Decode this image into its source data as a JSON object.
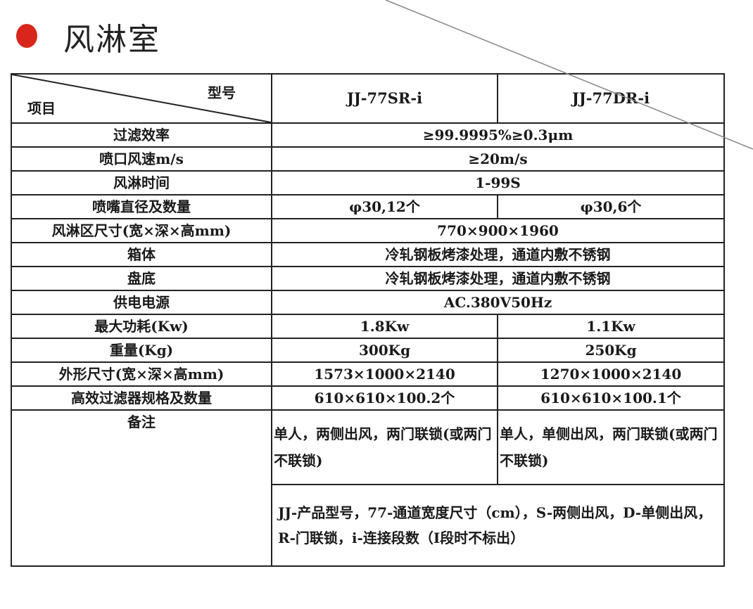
{
  "title": "风淋室",
  "colors": {
    "bullet": "#d9261c"
  },
  "header": {
    "item_label": "项目",
    "model_label": "型号",
    "models": [
      "JJ-77SR-i",
      "JJ-77DR-i"
    ]
  },
  "rows": [
    {
      "label": "过滤效率",
      "value": "≥99.9995%≥0.3μm"
    },
    {
      "label": "喷口风速m/s",
      "value": "≥20m/s"
    },
    {
      "label": "风淋时间",
      "value": "1-99S"
    },
    {
      "label": "喷嘴直径及数量",
      "values": [
        "φ30,12个",
        "φ30,6个"
      ]
    },
    {
      "label": "风淋区尺寸(宽×深×高mm)",
      "value": "770×900×1960"
    },
    {
      "label": "箱体",
      "value": "冷轧钢板烤漆处理，通道内敷不锈钢"
    },
    {
      "label": "盘底",
      "value": "冷轧钢板烤漆处理，通道内敷不锈钢"
    },
    {
      "label": "供电电源",
      "value": "AC.380V50Hz"
    },
    {
      "label": "最大功耗(Kw)",
      "values": [
        "1.8Kw",
        "1.1Kw"
      ]
    },
    {
      "label": "重量(Kg)",
      "values": [
        "300Kg",
        "250Kg"
      ]
    },
    {
      "label": "外形尺寸(宽×深×高mm)",
      "values": [
        "1573×1000×2140",
        "1270×1000×2140"
      ]
    },
    {
      "label": "高效过滤器规格及数量",
      "values": [
        "610×610×100.2个",
        "610×610×100.1个"
      ]
    }
  ],
  "remarks": {
    "label": "备注",
    "values": [
      "单人，两侧出风，两门联锁(或两门不联锁)",
      "单人，单侧出风，两门联锁(或两门不联锁)"
    ],
    "note": "JJ-产品型号，77-通道宽度尺寸（cm），S-两侧出风，D-单侧出风，R-门联锁，i-连接段数（I段时不标出）"
  }
}
